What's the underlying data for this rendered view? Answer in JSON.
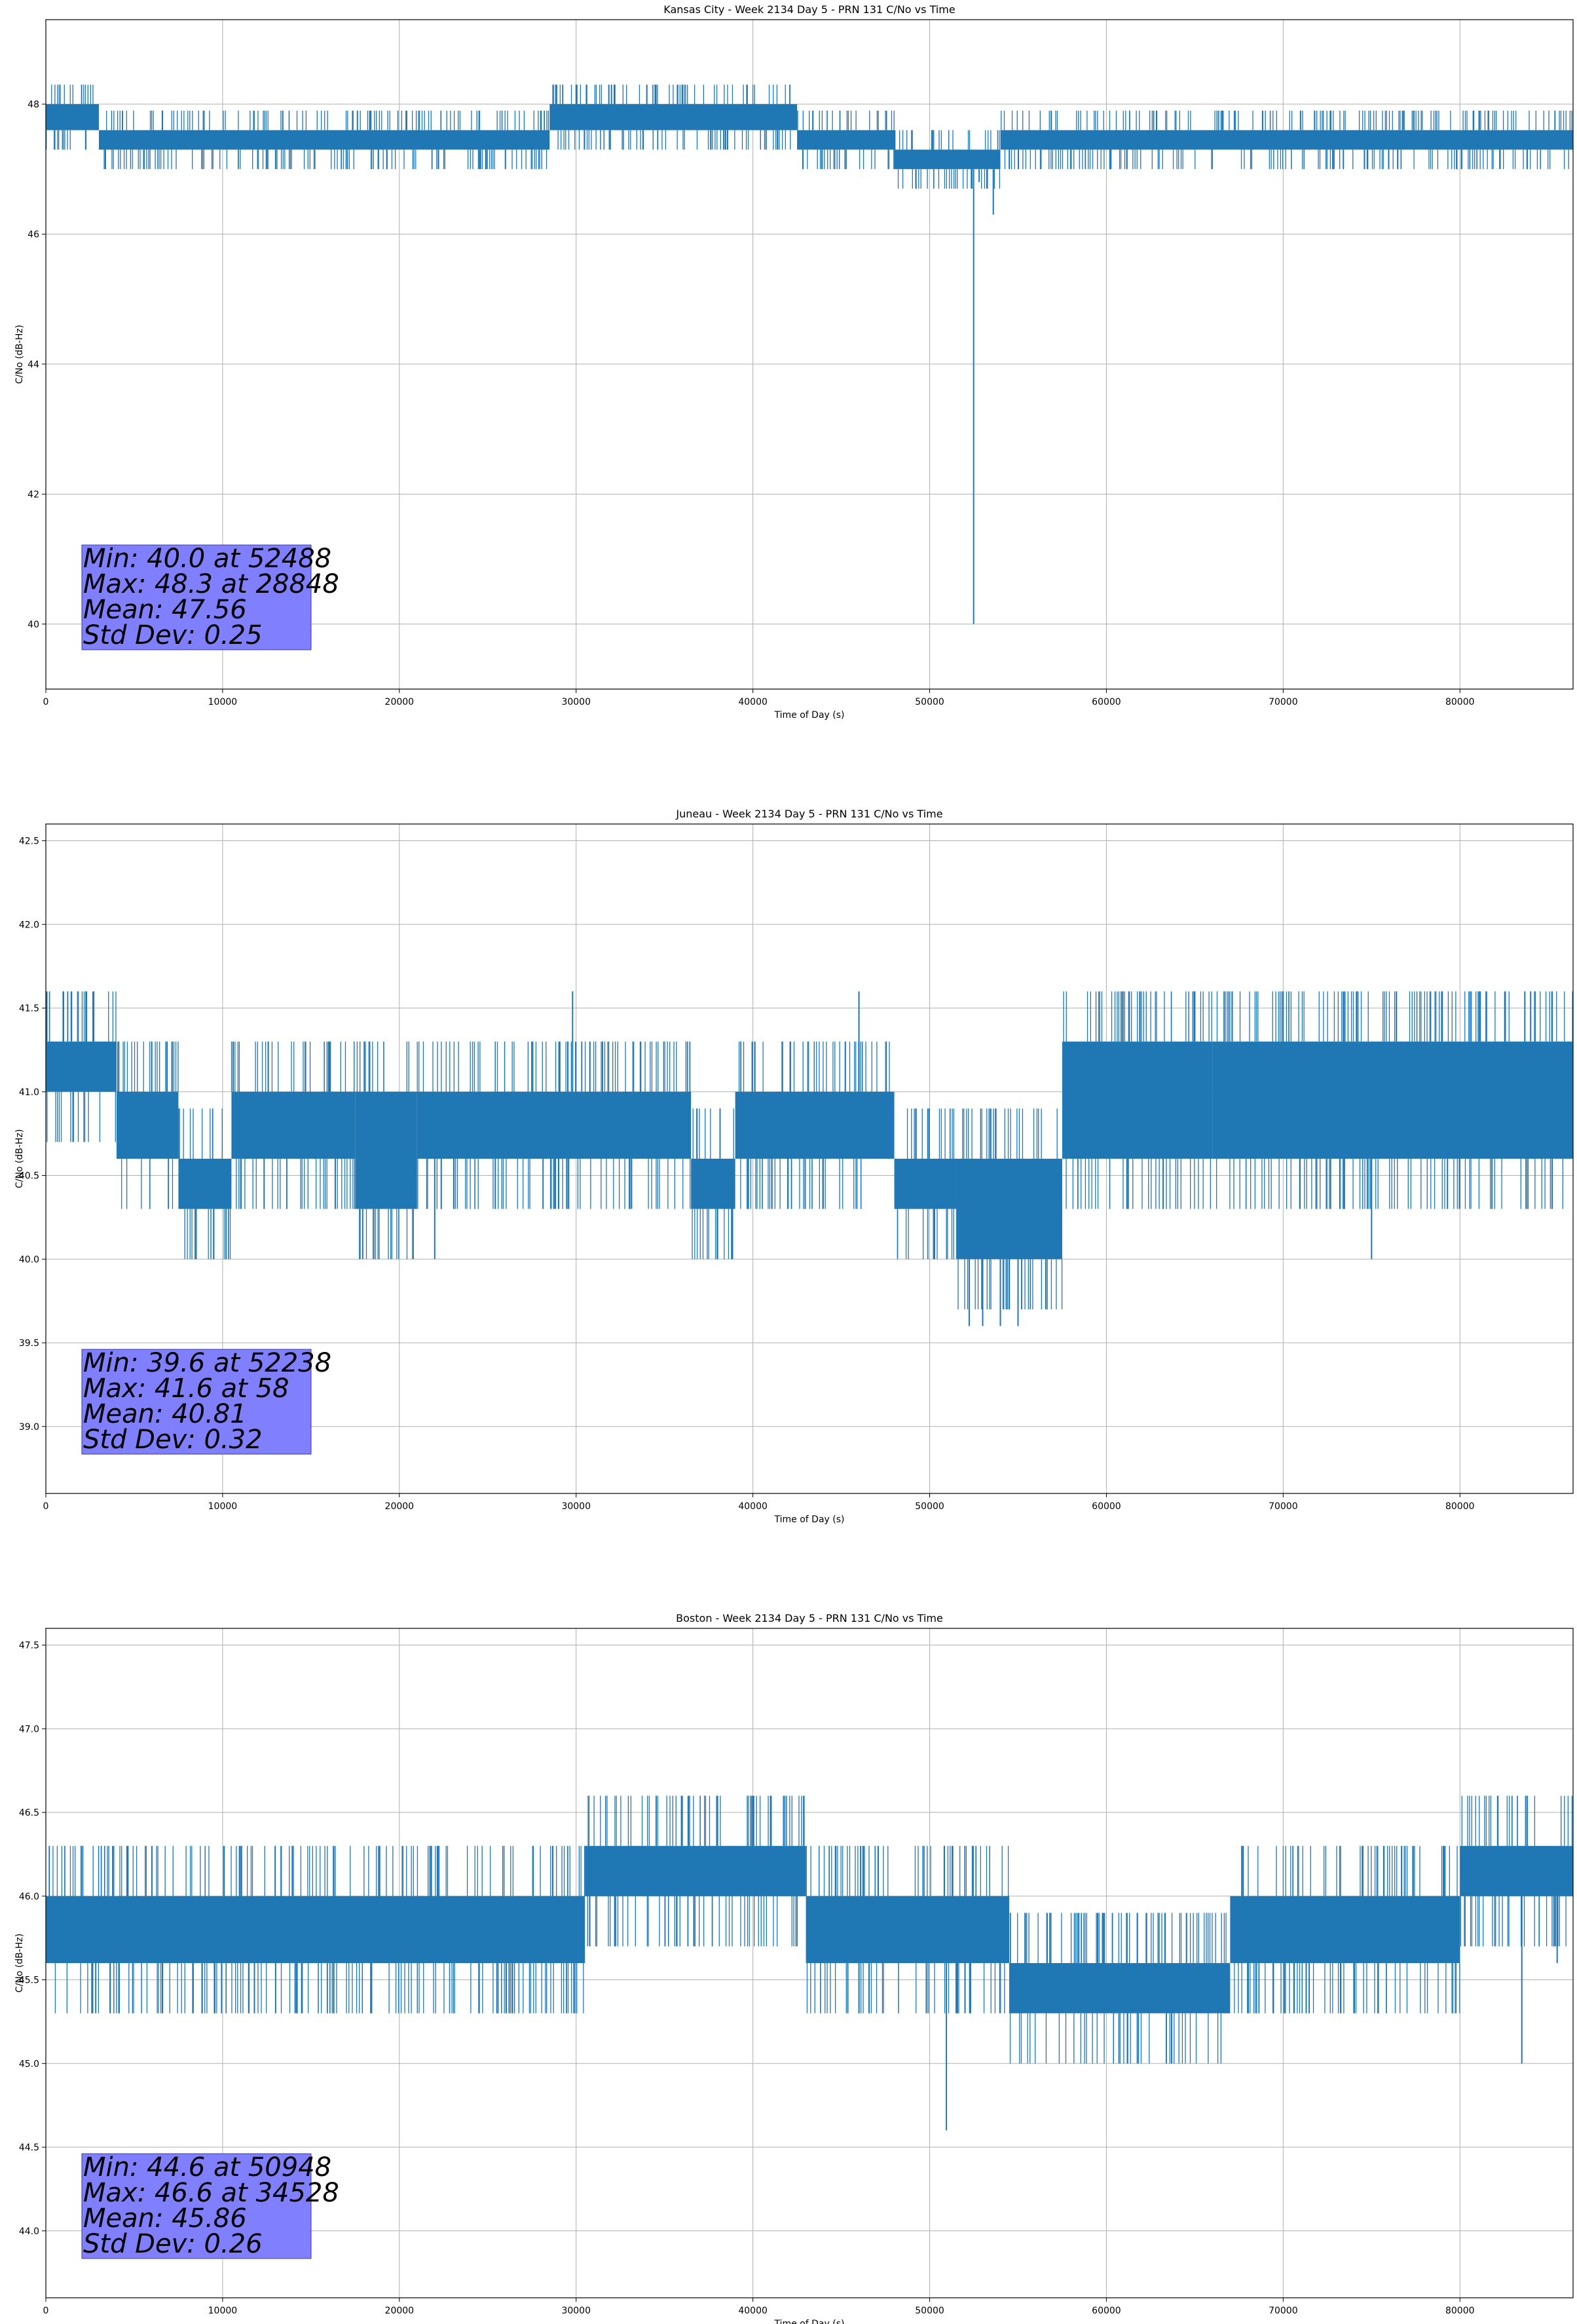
{
  "chart_data": [
    {
      "type": "line",
      "title": "Kansas City - Week 2134 Day 5 - PRN 131 C/No vs Time",
      "xlabel": "Time of Day (s)",
      "ylabel": "C/No (dB-Hz)",
      "xlim": [
        0,
        86400
      ],
      "ylim": [
        39.0,
        49.3
      ],
      "xticks": [
        0,
        10000,
        20000,
        30000,
        40000,
        50000,
        60000,
        70000,
        80000
      ],
      "xtick_labels": [
        "0",
        "10000",
        "20000",
        "30000",
        "40000",
        "50000",
        "60000",
        "70000",
        "80000"
      ],
      "yticks": [
        40,
        42,
        44,
        46,
        48
      ],
      "ytick_labels": [
        "40",
        "42",
        "44",
        "46",
        "48"
      ],
      "grid": true,
      "series_color": "#1f77b4",
      "box_color": "#8080ff",
      "stats": [
        "Min: 40.0 at 52488",
        "Max: 48.3 at 28848",
        "Mean: 47.56",
        "Std Dev: 0.25"
      ],
      "band_segments": [
        {
          "x": [
            0,
            3000
          ],
          "y": [
            47.6,
            48.0
          ]
        },
        {
          "x": [
            3000,
            28500
          ],
          "y": [
            47.3,
            47.6
          ]
        },
        {
          "x": [
            28500,
            42500
          ],
          "y": [
            47.6,
            48.0
          ]
        },
        {
          "x": [
            42500,
            48000
          ],
          "y": [
            47.3,
            47.6
          ]
        },
        {
          "x": [
            48000,
            54000
          ],
          "y": [
            47.0,
            47.3
          ]
        },
        {
          "x": [
            54000,
            56000
          ],
          "y": [
            47.3,
            47.6
          ]
        },
        {
          "x": [
            56000,
            86400
          ],
          "y": [
            47.3,
            47.6
          ]
        }
      ],
      "spikes": [
        [
          52488,
          40.0
        ],
        [
          28848,
          48.3
        ],
        [
          13000,
          47.0
        ],
        [
          26000,
          47.0
        ],
        [
          30000,
          48.3
        ],
        [
          32000,
          48.3
        ],
        [
          34000,
          48.3
        ],
        [
          36000,
          48.3
        ],
        [
          49000,
          47.0
        ],
        [
          52800,
          46.8
        ],
        [
          53600,
          46.3
        ],
        [
          60200,
          47.0
        ],
        [
          74600,
          47.0
        ],
        [
          83800,
          47.0
        ]
      ]
    },
    {
      "type": "line",
      "title": "Juneau - Week 2134 Day 5 - PRN 131 C/No vs Time",
      "xlabel": "Time of Day (s)",
      "ylabel": "C/No (dB-Hz)",
      "xlim": [
        0,
        86400
      ],
      "ylim": [
        38.6,
        42.6
      ],
      "xticks": [
        0,
        10000,
        20000,
        30000,
        40000,
        50000,
        60000,
        70000,
        80000
      ],
      "xtick_labels": [
        "0",
        "10000",
        "20000",
        "30000",
        "40000",
        "50000",
        "60000",
        "70000",
        "80000"
      ],
      "yticks": [
        39.0,
        39.5,
        40.0,
        40.5,
        41.0,
        41.5,
        42.0,
        42.5
      ],
      "ytick_labels": [
        "39.0",
        "39.5",
        "40.0",
        "40.5",
        "41.0",
        "41.5",
        "42.0",
        "42.5"
      ],
      "grid": true,
      "series_color": "#1f77b4",
      "box_color": "#8080ff",
      "stats": [
        "Min: 39.6 at 52238",
        "Max: 41.6 at 58",
        "Mean: 40.81",
        "Std Dev: 0.32"
      ],
      "band_segments": [
        {
          "x": [
            0,
            4000
          ],
          "y": [
            41.0,
            41.3
          ]
        },
        {
          "x": [
            4000,
            7500
          ],
          "y": [
            40.6,
            41.0
          ]
        },
        {
          "x": [
            7500,
            10500
          ],
          "y": [
            40.3,
            40.6
          ]
        },
        {
          "x": [
            10500,
            17500
          ],
          "y": [
            40.6,
            41.0
          ]
        },
        {
          "x": [
            17500,
            21000
          ],
          "y": [
            40.3,
            41.0
          ]
        },
        {
          "x": [
            21000,
            36500
          ],
          "y": [
            40.6,
            41.0
          ]
        },
        {
          "x": [
            36500,
            39000
          ],
          "y": [
            40.3,
            40.6
          ]
        },
        {
          "x": [
            39000,
            48000
          ],
          "y": [
            40.6,
            41.0
          ]
        },
        {
          "x": [
            48000,
            51500
          ],
          "y": [
            40.3,
            40.6
          ]
        },
        {
          "x": [
            51500,
            57500
          ],
          "y": [
            40.0,
            40.6
          ]
        },
        {
          "x": [
            57500,
            66000
          ],
          "y": [
            40.6,
            41.3
          ]
        },
        {
          "x": [
            66000,
            86400
          ],
          "y": [
            40.6,
            41.3
          ]
        }
      ],
      "spikes": [
        [
          58,
          41.6
        ],
        [
          1000,
          41.6
        ],
        [
          2300,
          41.6
        ],
        [
          8500,
          40.0
        ],
        [
          9500,
          40.0
        ],
        [
          22000,
          40.0
        ],
        [
          29800,
          41.6
        ],
        [
          38000,
          40.0
        ],
        [
          38800,
          40.0
        ],
        [
          46000,
          41.6
        ],
        [
          52238,
          39.6
        ],
        [
          53000,
          39.6
        ],
        [
          54000,
          39.6
        ],
        [
          55000,
          39.6
        ],
        [
          65000,
          41.6
        ],
        [
          70000,
          41.6
        ],
        [
          75000,
          40.0
        ],
        [
          79000,
          41.6
        ],
        [
          84000,
          41.6
        ]
      ]
    },
    {
      "type": "line",
      "title": "Boston - Week 2134 Day 5 - PRN 131 C/No vs Time",
      "xlabel": "Time of Day (s)",
      "ylabel": "C/No (dB-Hz)",
      "xlim": [
        0,
        86400
      ],
      "ylim": [
        43.6,
        47.6
      ],
      "xticks": [
        0,
        10000,
        20000,
        30000,
        40000,
        50000,
        60000,
        70000,
        80000
      ],
      "xtick_labels": [
        "0",
        "10000",
        "20000",
        "30000",
        "40000",
        "50000",
        "60000",
        "70000",
        "80000"
      ],
      "yticks": [
        44.0,
        44.5,
        45.0,
        45.5,
        46.0,
        46.5,
        47.0,
        47.5
      ],
      "ytick_labels": [
        "44.0",
        "44.5",
        "45.0",
        "45.5",
        "46.0",
        "46.5",
        "47.0",
        "47.5"
      ],
      "grid": true,
      "series_color": "#1f77b4",
      "box_color": "#8080ff",
      "stats": [
        "Min: 44.6 at 50948",
        "Max: 46.6 at 34528",
        "Mean: 45.86",
        "Std Dev: 0.26"
      ],
      "band_segments": [
        {
          "x": [
            0,
            30500
          ],
          "y": [
            45.6,
            46.0
          ]
        },
        {
          "x": [
            30500,
            43000
          ],
          "y": [
            46.0,
            46.3
          ]
        },
        {
          "x": [
            43000,
            54500
          ],
          "y": [
            45.6,
            46.0
          ]
        },
        {
          "x": [
            54500,
            67000
          ],
          "y": [
            45.3,
            45.6
          ]
        },
        {
          "x": [
            67000,
            80000
          ],
          "y": [
            45.6,
            46.0
          ]
        },
        {
          "x": [
            80000,
            86400
          ],
          "y": [
            46.0,
            46.3
          ]
        }
      ],
      "spikes": [
        [
          2000,
          46.3
        ],
        [
          6000,
          46.3
        ],
        [
          11800,
          45.3
        ],
        [
          13000,
          45.3
        ],
        [
          14500,
          45.3
        ],
        [
          24500,
          45.3
        ],
        [
          34528,
          46.6
        ],
        [
          36000,
          46.6
        ],
        [
          38000,
          46.6
        ],
        [
          41000,
          46.6
        ],
        [
          46000,
          45.3
        ],
        [
          50948,
          44.6
        ],
        [
          52000,
          45.3
        ],
        [
          61200,
          45.0
        ],
        [
          74000,
          45.3
        ],
        [
          83500,
          45.0
        ],
        [
          85500,
          45.6
        ]
      ]
    }
  ]
}
